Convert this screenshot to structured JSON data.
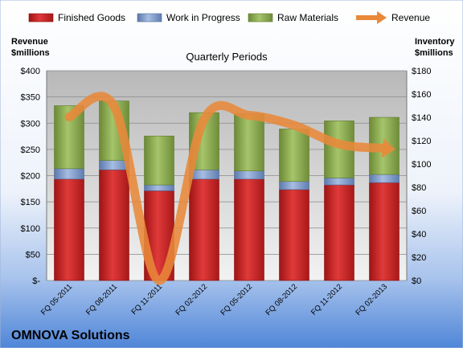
{
  "chart_data": {
    "type": "bar",
    "stacked": true,
    "title": "Quarterly Periods",
    "company": "OMNOVA Solutions",
    "left_axis_label": [
      "Revenue",
      "$millions"
    ],
    "right_axis_label": [
      "Inventory",
      "$millions"
    ],
    "categories": [
      "FQ 05-2011",
      "FQ 08-2011",
      "FQ 11-2011",
      "FQ 02-2012",
      "FQ 05-2012",
      "FQ 08-2012",
      "FQ 11-2012",
      "FQ 02-2013"
    ],
    "series": [
      {
        "name": "Finished Goods",
        "axis": "right",
        "color": "#d42a2a",
        "values": [
          87,
          95,
          77,
          87,
          87,
          78,
          82,
          84
        ]
      },
      {
        "name": "Work in Progress",
        "axis": "right",
        "color": "#7f9bcb",
        "values": [
          9,
          8,
          5,
          8,
          7,
          7,
          6,
          7
        ]
      },
      {
        "name": "Raw Materials",
        "axis": "right",
        "color": "#8fac54",
        "values": [
          54,
          51,
          42,
          49,
          49,
          45,
          49,
          49
        ]
      },
      {
        "name": "Revenue",
        "axis": "left",
        "type": "line",
        "color": "#e8893a",
        "values": [
          312,
          332,
          0,
          308,
          315,
          296,
          260,
          252
        ]
      }
    ],
    "left_axis": {
      "ylim": [
        0,
        400
      ],
      "ticks": [
        "$-",
        "$50",
        "$100",
        "$150",
        "$200",
        "$250",
        "$300",
        "$350",
        "$400"
      ]
    },
    "right_axis": {
      "ylim": [
        0,
        180
      ],
      "ticks": [
        "$0",
        "$20",
        "$40",
        "$60",
        "$80",
        "$100",
        "$120",
        "$140",
        "$160",
        "$180"
      ]
    },
    "legend_position": "top",
    "grid": true
  }
}
